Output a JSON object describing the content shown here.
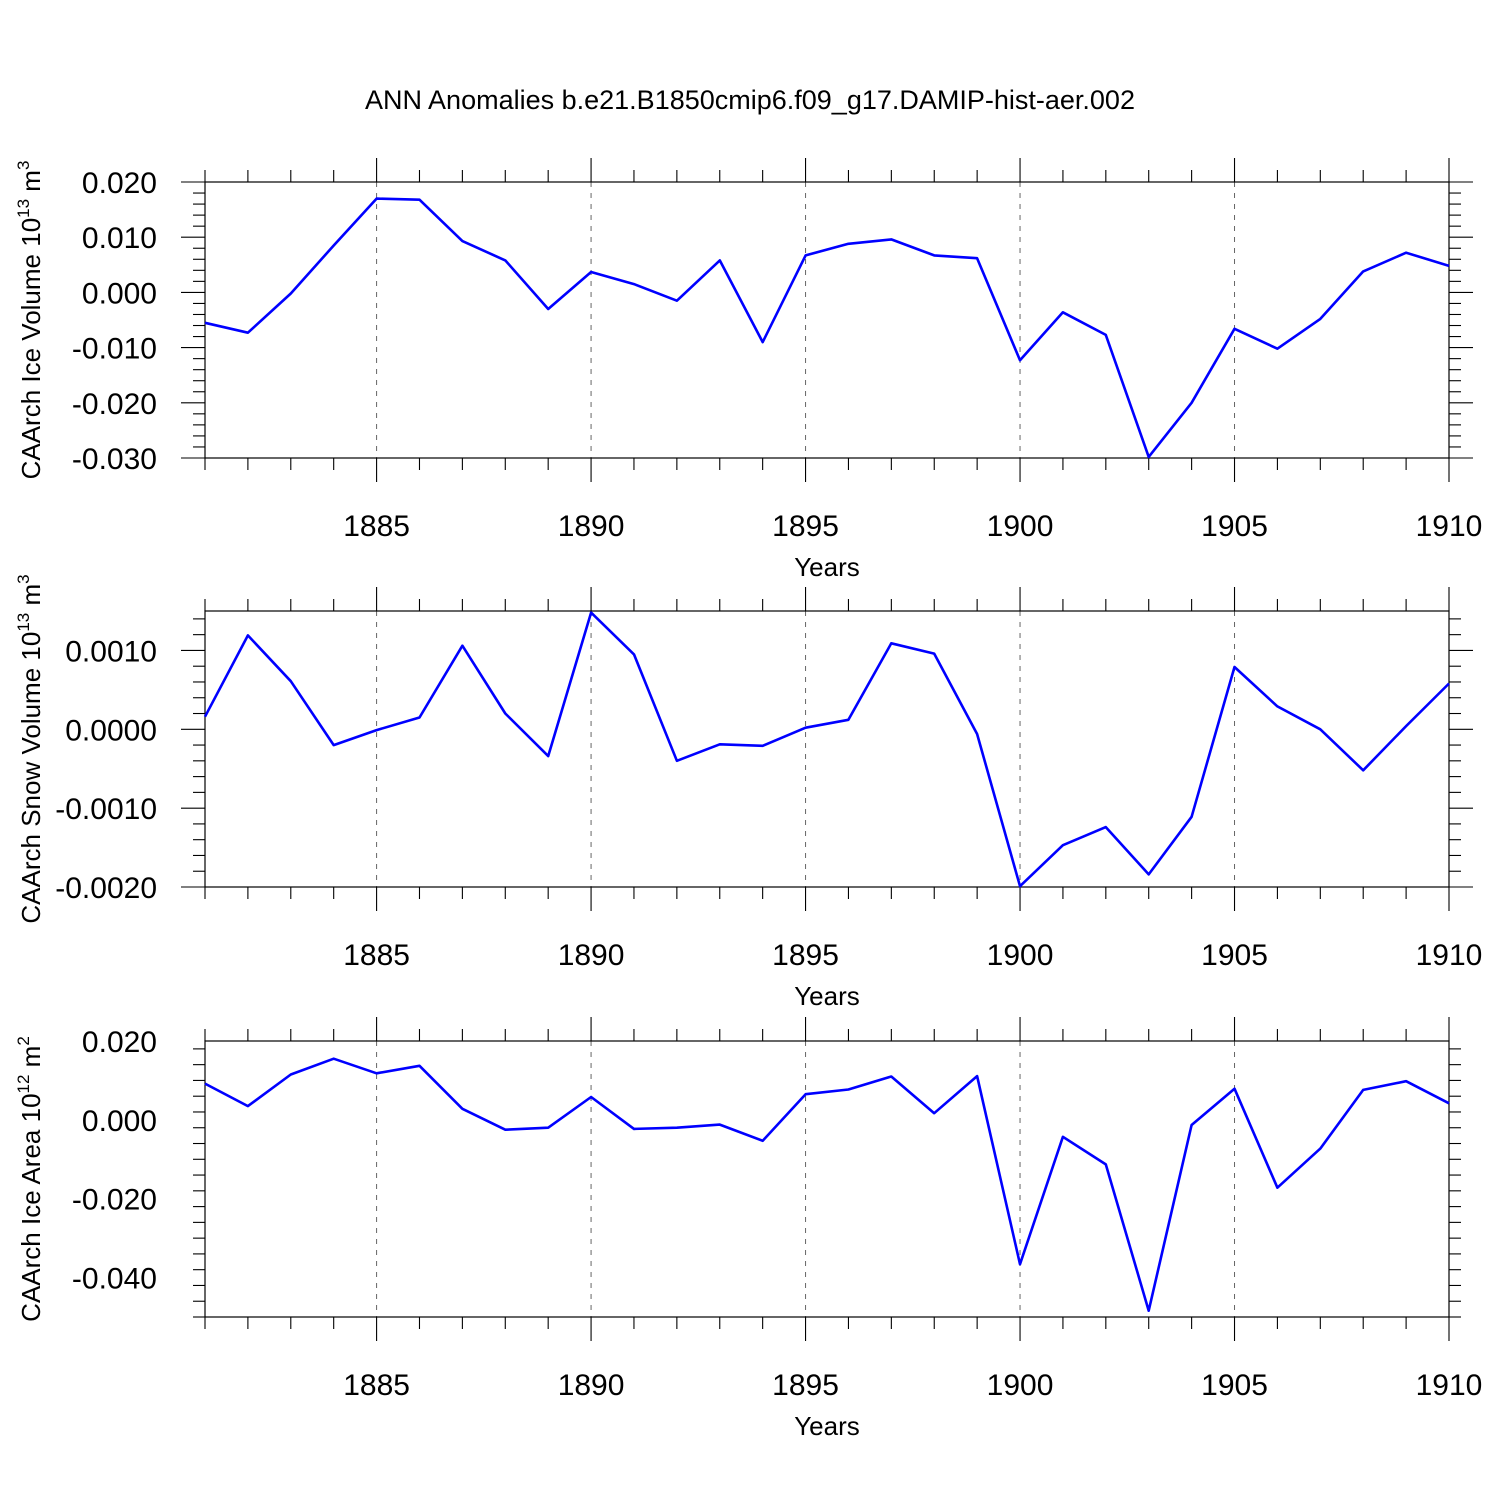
{
  "chart_data": {
    "title": "ANN Anomalies b.e21.B1850cmip6.f09_g17.DAMIP-hist-aer.002",
    "line_color": "#0000ff",
    "panels": [
      {
        "type": "line",
        "xlabel": "Years",
        "ylabel_base": "CAArch Ice Volume 10",
        "ylabel_exp": "13",
        "ylabel_unit": " m",
        "ylabel_unit_exp": "3",
        "xlim": [
          1881,
          1910
        ],
        "ylim": [
          -0.03,
          0.02
        ],
        "x_ticks": [
          "1885",
          "1890",
          "1895",
          "1900",
          "1905",
          "1910"
        ],
        "y_ticks": [
          "0.020",
          "0.010",
          "0.000",
          "-0.010",
          "-0.020",
          "-0.030"
        ],
        "x_grid": [
          1885,
          1890,
          1895,
          1900,
          1905
        ],
        "x": [
          1881,
          1882,
          1883,
          1884,
          1885,
          1886,
          1887,
          1888,
          1889,
          1890,
          1891,
          1892,
          1893,
          1894,
          1895,
          1896,
          1897,
          1898,
          1899,
          1900,
          1901,
          1902,
          1903,
          1904,
          1905,
          1906,
          1907,
          1908,
          1909,
          1910
        ],
        "y": [
          -0.0055,
          -0.0073,
          -0.0002,
          0.0085,
          0.017,
          0.0168,
          0.0093,
          0.0058,
          -0.003,
          0.0037,
          0.0015,
          -0.0015,
          0.0058,
          -0.009,
          0.0067,
          0.0088,
          0.0096,
          0.0067,
          0.0062,
          -0.0123,
          -0.0036,
          -0.0077,
          -0.0298,
          -0.02,
          -0.0066,
          -0.0102,
          -0.0048,
          0.0038,
          0.0072,
          0.0048
        ]
      },
      {
        "type": "line",
        "xlabel": "Years",
        "ylabel_base": "CAArch Snow Volume 10",
        "ylabel_exp": "13",
        "ylabel_unit": " m",
        "ylabel_unit_exp": "3",
        "xlim": [
          1881,
          1910
        ],
        "ylim": [
          -0.002,
          0.0015
        ],
        "x_ticks": [
          "1885",
          "1890",
          "1895",
          "1900",
          "1905",
          "1910"
        ],
        "y_ticks": [
          "0.0010",
          "0.0000",
          "-0.0010",
          "-0.0020"
        ],
        "x_grid": [
          1885,
          1890,
          1895,
          1900,
          1905
        ],
        "x": [
          1881,
          1882,
          1883,
          1884,
          1885,
          1886,
          1887,
          1888,
          1889,
          1890,
          1891,
          1892,
          1893,
          1894,
          1895,
          1896,
          1897,
          1898,
          1899,
          1900,
          1901,
          1902,
          1903,
          1904,
          1905,
          1906,
          1907,
          1908,
          1909,
          1910
        ],
        "y": [
          0.00016,
          0.00119,
          0.00061,
          -0.0002,
          -1e-05,
          0.00015,
          0.00106,
          0.0002,
          -0.00034,
          0.00148,
          0.00095,
          -0.0004,
          -0.00019,
          -0.00021,
          2e-05,
          0.00012,
          0.00109,
          0.00096,
          -6e-05,
          -0.00199,
          -0.00147,
          -0.00124,
          -0.00184,
          -0.00111,
          0.00079,
          0.00029,
          0.0,
          -0.00052,
          4e-05,
          0.00058
        ]
      },
      {
        "type": "line",
        "xlabel": "Years",
        "ylabel_base": "CAArch Ice Area 10",
        "ylabel_exp": "12",
        "ylabel_unit": " m",
        "ylabel_unit_exp": "2",
        "xlim": [
          1881,
          1910
        ],
        "ylim": [
          -0.05,
          0.02
        ],
        "x_ticks": [
          "1885",
          "1890",
          "1895",
          "1900",
          "1905",
          "1910"
        ],
        "y_ticks": [
          "0.020",
          "0.000",
          "-0.020",
          "-0.040"
        ],
        "x_grid": [
          1885,
          1890,
          1895,
          1900,
          1905
        ],
        "x": [
          1881,
          1882,
          1883,
          1884,
          1885,
          1886,
          1887,
          1888,
          1889,
          1890,
          1891,
          1892,
          1893,
          1894,
          1895,
          1896,
          1897,
          1898,
          1899,
          1900,
          1901,
          1902,
          1903,
          1904,
          1905,
          1906,
          1907,
          1908,
          1909,
          1910
        ],
        "y": [
          0.0092,
          0.0035,
          0.0115,
          0.0155,
          0.0118,
          0.0137,
          0.0028,
          -0.0025,
          -0.002,
          0.0058,
          -0.0023,
          -0.002,
          -0.0012,
          -0.0053,
          0.0065,
          0.0077,
          0.011,
          0.0017,
          0.0111,
          -0.0366,
          -0.0043,
          -0.0113,
          -0.0484,
          -0.0013,
          0.0079,
          -0.0172,
          -0.0073,
          0.0076,
          0.0098,
          0.0042
        ]
      }
    ]
  }
}
